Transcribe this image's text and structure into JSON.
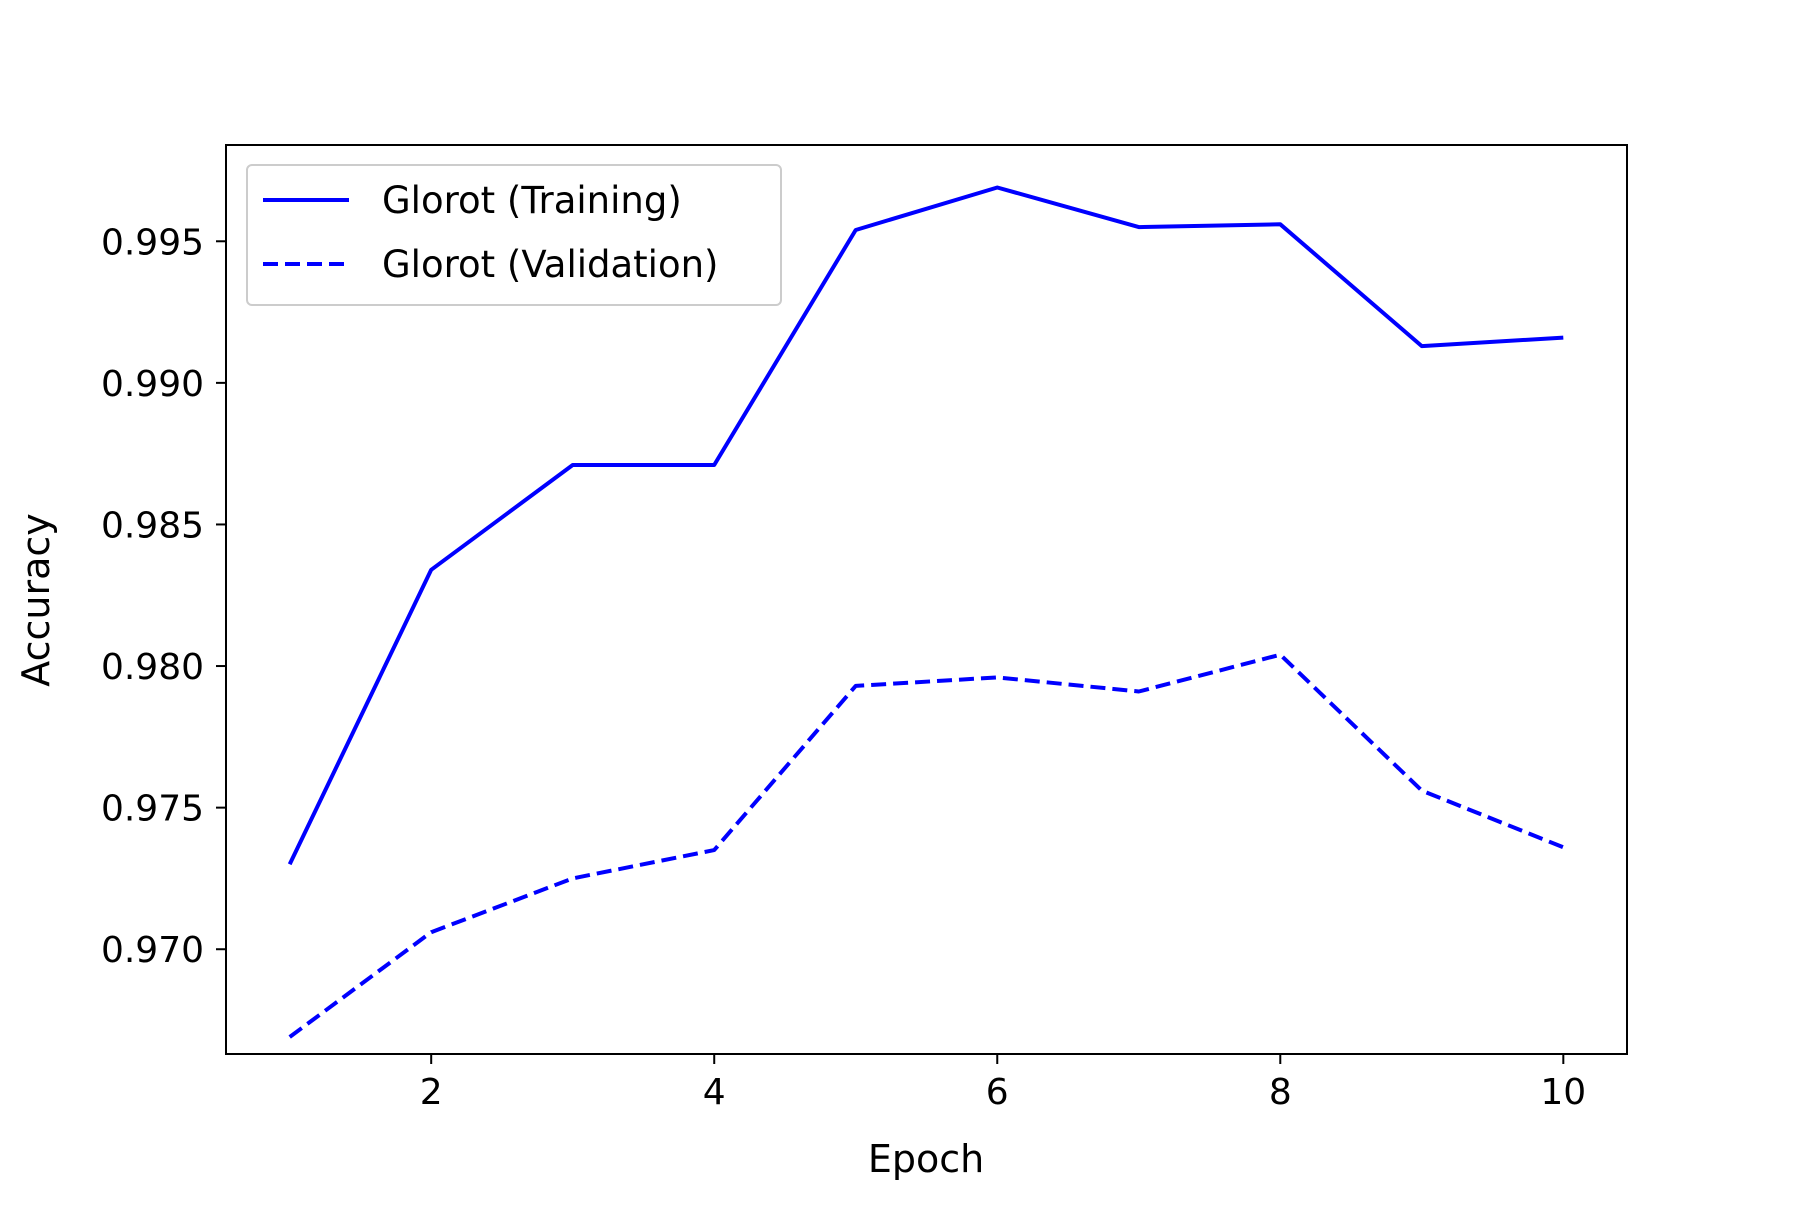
{
  "chart_data": {
    "type": "line",
    "title": "",
    "xlabel": "Epoch",
    "ylabel": "Accuracy",
    "x": [
      1,
      2,
      3,
      4,
      5,
      6,
      7,
      8,
      9,
      10
    ],
    "xlim": [
      0.55,
      10.45
    ],
    "ylim": [
      0.9663,
      0.9984
    ],
    "xticks": [
      2,
      4,
      6,
      8,
      10
    ],
    "xtick_labels": [
      "2",
      "4",
      "6",
      "8",
      "10"
    ],
    "yticks": [
      0.97,
      0.975,
      0.98,
      0.985,
      0.99,
      0.995
    ],
    "ytick_labels": [
      "0.970",
      "0.975",
      "0.980",
      "0.985",
      "0.990",
      "0.995"
    ],
    "grid": false,
    "legend_position": "top-left",
    "series": [
      {
        "name": "Glorot (Training)",
        "style": "solid",
        "color": "#0000ff",
        "values": [
          0.973,
          0.9834,
          0.9871,
          0.9871,
          0.9954,
          0.9969,
          0.9955,
          0.9956,
          0.9913,
          0.9916
        ]
      },
      {
        "name": "Glorot (Validation)",
        "style": "dashed",
        "color": "#0000ff",
        "values": [
          0.9669,
          0.9706,
          0.9725,
          0.9735,
          0.9793,
          0.9796,
          0.9791,
          0.9804,
          0.9756,
          0.9736
        ]
      }
    ]
  }
}
